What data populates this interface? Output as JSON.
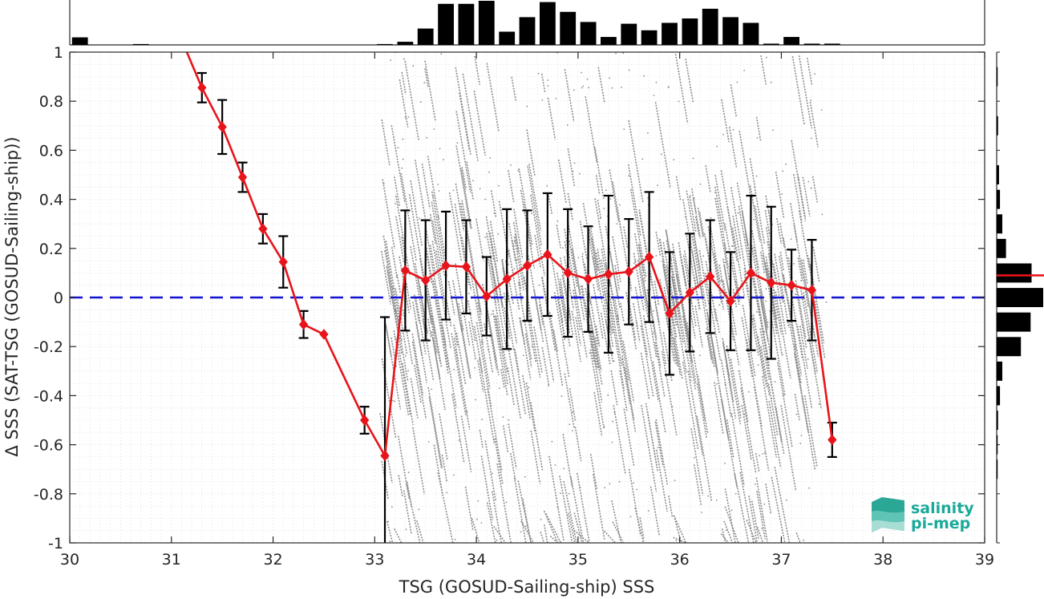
{
  "chart_data": {
    "type": "scatter",
    "title": "",
    "xlabel": "TSG (GOSUD-Sailing-ship) SSS",
    "ylabel": "Δ SSS (SAT-TSG (GOSUD-Sailing-ship))",
    "xlim": [
      30,
      39
    ],
    "ylim": [
      -1,
      1
    ],
    "x_ticks": [
      "30",
      "31",
      "32",
      "33",
      "34",
      "35",
      "36",
      "37",
      "38",
      "39"
    ],
    "y_ticks": [
      "1",
      "0.8",
      "0.6",
      "0.4",
      "0.2",
      "0",
      "-0.2",
      "-0.4",
      "-0.6",
      "-0.8",
      "-1"
    ],
    "grid": "minor dotted",
    "colors": {
      "binned_mean": "#e8141b",
      "error_bars": "#000000",
      "zero_line": "#1414d2",
      "scatter": "#8c8c8c",
      "histograms": "#000000",
      "logo": "#1aa99a"
    },
    "zero_line": {
      "y": 0,
      "style": "dashed"
    },
    "binned_mean": {
      "x": [
        31.1,
        31.3,
        31.5,
        31.7,
        31.9,
        32.1,
        32.3,
        32.5,
        32.9,
        33.1,
        33.3,
        33.5,
        33.7,
        33.9,
        34.1,
        34.3,
        34.5,
        34.7,
        34.9,
        35.1,
        35.3,
        35.5,
        35.7,
        35.9,
        36.1,
        36.3,
        36.5,
        36.7,
        36.9,
        37.1,
        37.3,
        37.5
      ],
      "y": [
        1.05,
        0.855,
        0.695,
        0.49,
        0.28,
        0.145,
        -0.11,
        -0.15,
        -0.5,
        -0.645,
        0.11,
        0.07,
        0.13,
        0.125,
        0.005,
        0.075,
        0.13,
        0.175,
        0.1,
        0.075,
        0.095,
        0.105,
        0.165,
        -0.065,
        0.02,
        0.085,
        -0.015,
        0.1,
        0.06,
        0.05,
        0.03,
        -0.58
      ],
      "std": [
        null,
        0.06,
        0.11,
        0.06,
        0.06,
        0.105,
        0.055,
        null,
        0.055,
        0.565,
        0.245,
        0.245,
        0.22,
        0.19,
        0.16,
        0.285,
        0.225,
        0.25,
        0.26,
        0.215,
        0.32,
        0.215,
        0.265,
        0.25,
        0.24,
        0.23,
        0.2,
        0.315,
        0.31,
        0.145,
        0.205,
        0.07
      ]
    },
    "top_histogram": {
      "bin_centers": [
        30.1,
        30.3,
        30.5,
        30.7,
        30.9,
        31.1,
        31.3,
        31.5,
        31.7,
        31.9,
        32.1,
        32.3,
        32.5,
        32.7,
        32.9,
        33.1,
        33.3,
        33.5,
        33.7,
        33.9,
        34.1,
        34.3,
        34.5,
        34.7,
        34.9,
        35.1,
        35.3,
        35.5,
        35.7,
        35.9,
        36.1,
        36.3,
        36.5,
        36.7,
        36.9,
        37.1,
        37.3,
        37.5
      ],
      "relative_counts": [
        0.17,
        0,
        0,
        0.02,
        0,
        0,
        0,
        0,
        0,
        0,
        0,
        0,
        0,
        0,
        0,
        0.02,
        0.07,
        0.37,
        0.93,
        0.93,
        1.0,
        0.3,
        0.63,
        0.97,
        0.75,
        0.52,
        0.18,
        0.48,
        0.33,
        0.5,
        0.6,
        0.82,
        0.63,
        0.5,
        0.03,
        0.18,
        0.03,
        0.03
      ]
    },
    "right_histogram": {
      "bin_centers": [
        0.9,
        0.7,
        0.5,
        0.4,
        0.3,
        0.2,
        0.1,
        0.0,
        -0.1,
        -0.2,
        -0.3,
        -0.4,
        -0.5,
        -0.6,
        -0.7
      ],
      "relative_counts": [
        0.02,
        0.03,
        0.05,
        0.07,
        0.12,
        0.2,
        0.75,
        1.0,
        0.73,
        0.52,
        0.12,
        0.07,
        0.03,
        0.02,
        0.02
      ],
      "mean": 0.09
    },
    "logo": {
      "line1": "salinity",
      "line2": "pi-mep"
    }
  }
}
